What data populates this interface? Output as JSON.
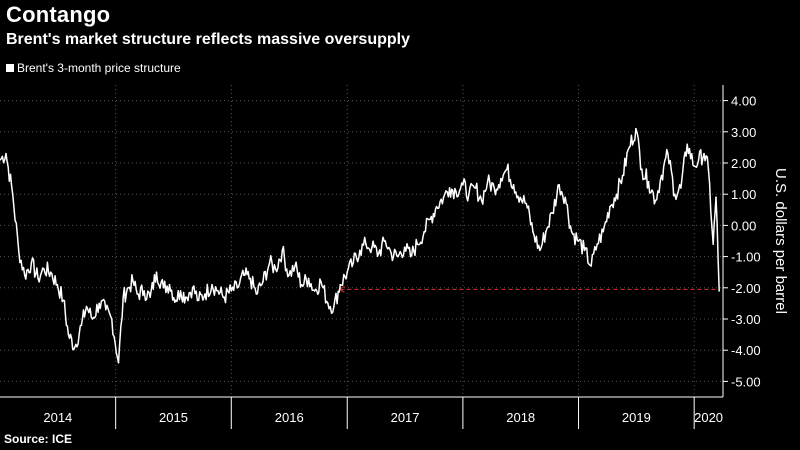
{
  "header": {
    "title": "Contango",
    "subtitle": "Brent's market structure reflects massive oversupply"
  },
  "legend": {
    "label": "Brent's 3-month price structure"
  },
  "footer": {
    "source": "Source: ICE"
  },
  "colors": {
    "background": "#000000",
    "line": "#ffffff",
    "grid": "#555555",
    "reference": "#e03030"
  },
  "chart_data": {
    "type": "line",
    "title": "Contango",
    "subtitle": "Brent's market structure reflects massive oversupply",
    "ylabel": "U.S. dollars per barrel",
    "ylim": [
      -5.5,
      4.5
    ],
    "yticks": [
      4,
      3,
      2,
      1,
      0,
      -1,
      -2,
      -3,
      -4,
      -5
    ],
    "ytick_labels": [
      "4.00",
      "3.00",
      "2.00",
      "1.00",
      "0.00",
      "-1.00",
      "-2.00",
      "-3.00",
      "-4.00",
      "-5.00"
    ],
    "y_axis_position": "right",
    "grid": true,
    "legend_placement": "top-left",
    "xlim": [
      "2014-01-01",
      "2020-04-01"
    ],
    "x_categories": [
      "2014",
      "2015",
      "2016",
      "2017",
      "2018",
      "2019",
      "2020"
    ],
    "series": [
      {
        "name": "Brent's 3-month price structure",
        "x": [
          "2014-01-01",
          "2014-01-20",
          "2014-02-10",
          "2014-03-01",
          "2014-03-20",
          "2014-04-10",
          "2014-05-01",
          "2014-05-20",
          "2014-06-10",
          "2014-07-01",
          "2014-07-20",
          "2014-08-05",
          "2014-08-25",
          "2014-09-15",
          "2014-10-01",
          "2014-10-20",
          "2014-11-10",
          "2014-12-01",
          "2014-12-20",
          "2015-01-10",
          "2015-01-25",
          "2015-02-10",
          "2015-02-25",
          "2015-03-10",
          "2015-04-01",
          "2015-04-20",
          "2015-05-10",
          "2015-06-01",
          "2015-06-20",
          "2015-07-10",
          "2015-07-25",
          "2015-08-10",
          "2015-09-01",
          "2015-09-20",
          "2015-10-10",
          "2015-11-01",
          "2015-11-20",
          "2015-12-10",
          "2016-01-01",
          "2016-01-20",
          "2016-02-10",
          "2016-03-01",
          "2016-03-20",
          "2016-04-10",
          "2016-05-01",
          "2016-05-20",
          "2016-06-10",
          "2016-07-01",
          "2016-07-20",
          "2016-08-10",
          "2016-09-01",
          "2016-09-20",
          "2016-10-10",
          "2016-11-01",
          "2016-11-20",
          "2016-12-10",
          "2017-01-01",
          "2017-01-20",
          "2017-02-10",
          "2017-03-01",
          "2017-03-20",
          "2017-04-10",
          "2017-05-01",
          "2017-05-20",
          "2017-06-10",
          "2017-07-01",
          "2017-07-20",
          "2017-08-10",
          "2017-09-01",
          "2017-09-20",
          "2017-10-10",
          "2017-11-01",
          "2017-11-20",
          "2017-12-10",
          "2018-01-01",
          "2018-01-20",
          "2018-02-10",
          "2018-03-01",
          "2018-03-20",
          "2018-04-10",
          "2018-05-01",
          "2018-05-20",
          "2018-06-10",
          "2018-07-01",
          "2018-07-20",
          "2018-08-10",
          "2018-09-01",
          "2018-09-20",
          "2018-10-10",
          "2018-11-01",
          "2018-11-20",
          "2018-12-10",
          "2019-01-01",
          "2019-01-20",
          "2019-02-10",
          "2019-03-01",
          "2019-03-20",
          "2019-04-10",
          "2019-05-01",
          "2019-05-20",
          "2019-06-10",
          "2019-07-01",
          "2019-07-20",
          "2019-08-10",
          "2019-09-01",
          "2019-09-20",
          "2019-10-10",
          "2019-11-01",
          "2019-11-20",
          "2019-12-10",
          "2020-01-01",
          "2020-01-15",
          "2020-02-01",
          "2020-02-15",
          "2020-03-01",
          "2020-03-10",
          "2020-03-20"
        ],
        "y": [
          2.1,
          2.3,
          1.0,
          -0.8,
          -1.6,
          -1.2,
          -1.7,
          -1.4,
          -1.5,
          -1.9,
          -2.4,
          -3.5,
          -3.9,
          -3.2,
          -2.6,
          -3.0,
          -2.5,
          -2.7,
          -3.0,
          -4.4,
          -2.3,
          -2.0,
          -1.8,
          -2.2,
          -2.1,
          -2.3,
          -1.5,
          -2.0,
          -1.9,
          -2.4,
          -2.1,
          -2.3,
          -2.0,
          -2.4,
          -2.2,
          -1.9,
          -2.1,
          -2.3,
          -2.1,
          -2.0,
          -1.6,
          -1.7,
          -2.2,
          -1.8,
          -1.2,
          -1.4,
          -0.8,
          -1.6,
          -1.3,
          -1.9,
          -1.7,
          -2.1,
          -1.8,
          -2.5,
          -2.6,
          -1.9,
          -1.5,
          -1.2,
          -0.8,
          -0.6,
          -0.7,
          -0.9,
          -0.5,
          -0.9,
          -1.0,
          -0.7,
          -1.0,
          -0.6,
          -0.2,
          0.2,
          0.6,
          0.9,
          1.2,
          1.1,
          1.3,
          1.0,
          1.2,
          0.8,
          1.4,
          1.2,
          1.5,
          1.8,
          1.3,
          0.9,
          0.7,
          -0.2,
          -0.8,
          -0.2,
          0.4,
          1.3,
          0.9,
          -0.2,
          -0.5,
          -0.8,
          -1.3,
          -0.6,
          -0.2,
          0.6,
          1.0,
          1.6,
          2.5,
          3.1,
          1.8,
          1.4,
          0.8,
          1.6,
          2.3,
          1.0,
          1.2,
          2.6,
          1.9,
          2.1,
          2.3,
          1.8,
          -0.6,
          0.9,
          -2.1
        ]
      }
    ],
    "reference_line": {
      "y": -2.05,
      "x_from": "2016-12-01",
      "x_to": "2020-03-20",
      "style": "dashed",
      "arrow": "left"
    }
  }
}
